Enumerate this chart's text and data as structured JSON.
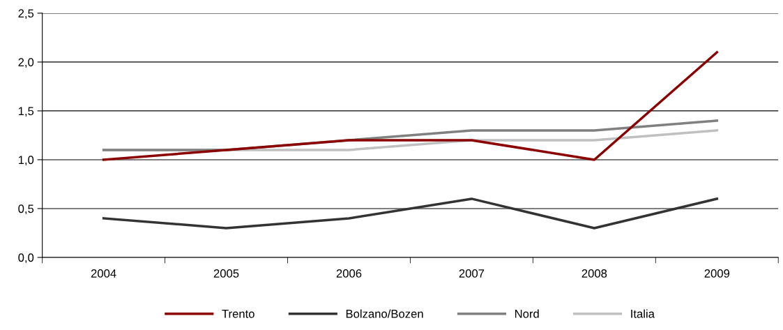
{
  "chart_data": {
    "type": "line",
    "categories": [
      "2004",
      "2005",
      "2006",
      "2007",
      "2008",
      "2009"
    ],
    "series": [
      {
        "name": "Trento",
        "color": "#8b0000",
        "values": [
          1.0,
          1.1,
          1.2,
          1.2,
          1.0,
          2.1
        ]
      },
      {
        "name": "Bolzano/Bozen",
        "color": "#333333",
        "values": [
          0.4,
          0.3,
          0.4,
          0.6,
          0.3,
          0.6
        ]
      },
      {
        "name": "Nord",
        "color": "#808080",
        "values": [
          1.1,
          1.1,
          1.2,
          1.3,
          1.3,
          1.4
        ]
      },
      {
        "name": "Italia",
        "color": "#c0c0c0",
        "values": [
          1.1,
          1.1,
          1.1,
          1.2,
          1.2,
          1.3
        ]
      }
    ],
    "ylim": [
      0,
      2.5
    ],
    "yticks": [
      {
        "value": 0,
        "label": "0,0"
      },
      {
        "value": 0.5,
        "label": "0,5"
      },
      {
        "value": 1.0,
        "label": "1,0"
      },
      {
        "value": 1.5,
        "label": "1,5"
      },
      {
        "value": 2.0,
        "label": "2,0"
      },
      {
        "value": 2.5,
        "label": "2,5"
      }
    ],
    "grid": "y",
    "legend": "bottom",
    "marker": "none",
    "line_style": "solid"
  }
}
